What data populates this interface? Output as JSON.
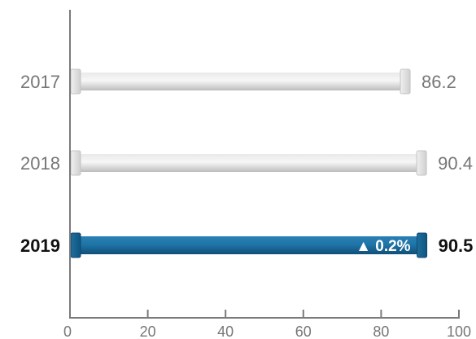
{
  "chart_data": {
    "type": "bar",
    "orientation": "horizontal",
    "categories": [
      "2017",
      "2018",
      "2019"
    ],
    "values": [
      86.2,
      90.4,
      90.5
    ],
    "value_labels": [
      "86.2",
      "90.4",
      "90.5"
    ],
    "highlight_index": 2,
    "annotation": {
      "index": 2,
      "text": "▲ 0.2%"
    },
    "xlim": [
      0,
      100
    ],
    "x_ticks": [
      0,
      20,
      40,
      60,
      80,
      100
    ],
    "x_tick_labels": [
      "0",
      "20",
      "40",
      "60",
      "80",
      "100"
    ],
    "grid": false,
    "colors": {
      "bar": "#d3d3d3",
      "bar_highlight": "#1a6a9a",
      "axis": "#7a7a7a",
      "label": "#777777",
      "label_highlight": "#111111"
    }
  }
}
